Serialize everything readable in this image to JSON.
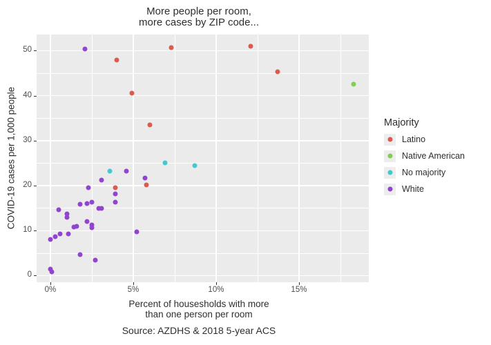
{
  "title": {
    "line1": "More people per room,",
    "line2": "more cases by ZIP code..."
  },
  "axis": {
    "x_title_line1": "Percent of housesholds with more",
    "x_title_line2": "than one person per room",
    "y_title": "COVID-19 cases per 1,000 people"
  },
  "caption": "Source: AZDHS & 2018 5-year ACS",
  "legend": {
    "title": "Majority"
  },
  "colors": {
    "panel_background": "#ebebeb",
    "gridline": "#ffffff",
    "tick_text": "#4d4d4d",
    "text": "#2e2e2e",
    "latino": "#da5b50",
    "native_american": "#82ce50",
    "no_majority": "#41c9cf",
    "white": "#9144ce"
  },
  "chart_data": {
    "type": "scatter",
    "title": "More people per room,\nmore cases by ZIP code...",
    "xlabel": "Percent of housesholds with more than one person per room",
    "ylabel": "COVID-19 cases per 1,000 people",
    "caption": "Source: AZDHS & 2018 5-year ACS",
    "legend_title": "Majority",
    "legend_position": "right",
    "grid": true,
    "xlim": [
      -0.83,
      19.21
    ],
    "ylim": [
      -1.46,
      53.6
    ],
    "x_ticks": [
      {
        "value": 0,
        "label": "0%"
      },
      {
        "value": 5,
        "label": "5%"
      },
      {
        "value": 10,
        "label": "10%"
      },
      {
        "value": 15,
        "label": "15%"
      }
    ],
    "y_ticks": [
      {
        "value": 0,
        "label": "0"
      },
      {
        "value": 10,
        "label": "10"
      },
      {
        "value": 20,
        "label": "20"
      },
      {
        "value": 30,
        "label": "30"
      },
      {
        "value": 40,
        "label": "40"
      },
      {
        "value": 50,
        "label": "50"
      }
    ],
    "x_minor_ticks": [
      2.5,
      7.5,
      12.5,
      17.5
    ],
    "y_minor_ticks": [
      5,
      15,
      25,
      35,
      45
    ],
    "series": [
      {
        "name": "Latino",
        "color": "#da5b50",
        "points": [
          [
            7.3,
            50.7
          ],
          [
            12.1,
            51.0
          ],
          [
            4.0,
            47.9
          ],
          [
            13.7,
            45.3
          ],
          [
            4.9,
            40.5
          ],
          [
            6.0,
            33.5
          ],
          [
            5.8,
            20.2
          ],
          [
            3.9,
            19.6
          ]
        ]
      },
      {
        "name": "Native American",
        "color": "#82ce50",
        "points": [
          [
            18.3,
            42.6
          ]
        ]
      },
      {
        "name": "No majority",
        "color": "#41c9cf",
        "points": [
          [
            6.9,
            25.1
          ],
          [
            8.7,
            24.4
          ],
          [
            3.6,
            23.3
          ]
        ]
      },
      {
        "name": "White",
        "color": "#9144ce",
        "points": [
          [
            2.1,
            50.4
          ],
          [
            4.6,
            23.3
          ],
          [
            5.7,
            21.7
          ],
          [
            3.1,
            21.3
          ],
          [
            2.3,
            19.5
          ],
          [
            3.9,
            18.1
          ],
          [
            3.9,
            16.4
          ],
          [
            2.5,
            16.3
          ],
          [
            2.2,
            16.0
          ],
          [
            1.8,
            15.8
          ],
          [
            2.9,
            15.0
          ],
          [
            3.1,
            15.0
          ],
          [
            0.5,
            14.6
          ],
          [
            1.0,
            13.7
          ],
          [
            1.0,
            12.9
          ],
          [
            2.2,
            12.1
          ],
          [
            2.5,
            11.3
          ],
          [
            2.5,
            10.6
          ],
          [
            1.4,
            10.8
          ],
          [
            1.6,
            10.9
          ],
          [
            5.2,
            9.7
          ],
          [
            0.6,
            9.2
          ],
          [
            1.1,
            9.2
          ],
          [
            0.3,
            8.6
          ],
          [
            0.0,
            8.0
          ],
          [
            1.8,
            4.7
          ],
          [
            2.7,
            3.5
          ],
          [
            0.0,
            1.5
          ],
          [
            0.1,
            0.9
          ]
        ]
      }
    ]
  }
}
